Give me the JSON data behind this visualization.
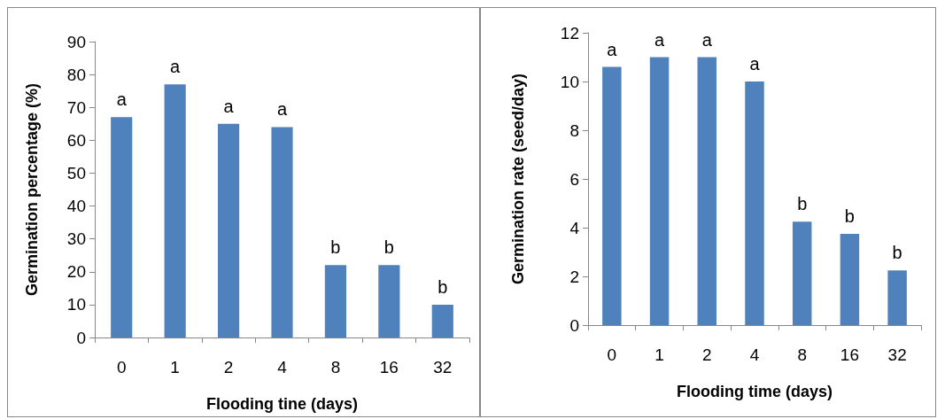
{
  "chart_data": [
    {
      "type": "bar",
      "xlabel": "Flooding tine (days)",
      "ylabel": "Germination percentage (%)",
      "categories": [
        "0",
        "1",
        "2",
        "4",
        "8",
        "16",
        "32"
      ],
      "series": [
        {
          "color": "#4f81bd",
          "values": [
            67,
            77,
            65,
            64,
            22,
            22,
            10
          ],
          "value_labels": [
            "a",
            "a",
            "a",
            "a",
            "b",
            "b",
            "b"
          ]
        }
      ],
      "ylim": [
        0,
        90
      ],
      "yticks": [
        0,
        10,
        20,
        30,
        40,
        50,
        60,
        70,
        80,
        90
      ]
    },
    {
      "type": "bar",
      "xlabel": "Flooding time (days)",
      "ylabel": "Germination rate (seed/day)",
      "categories": [
        "0",
        "1",
        "2",
        "4",
        "8",
        "16",
        "32"
      ],
      "series": [
        {
          "color": "#4f81bd",
          "values": [
            10.6,
            11,
            11,
            10,
            4.25,
            3.75,
            2.25
          ],
          "value_labels": [
            "a",
            "a",
            "a",
            "a",
            "b",
            "b",
            "b"
          ]
        }
      ],
      "ylim": [
        0,
        12
      ],
      "yticks": [
        0,
        2,
        4,
        6,
        8,
        10,
        12
      ]
    }
  ]
}
